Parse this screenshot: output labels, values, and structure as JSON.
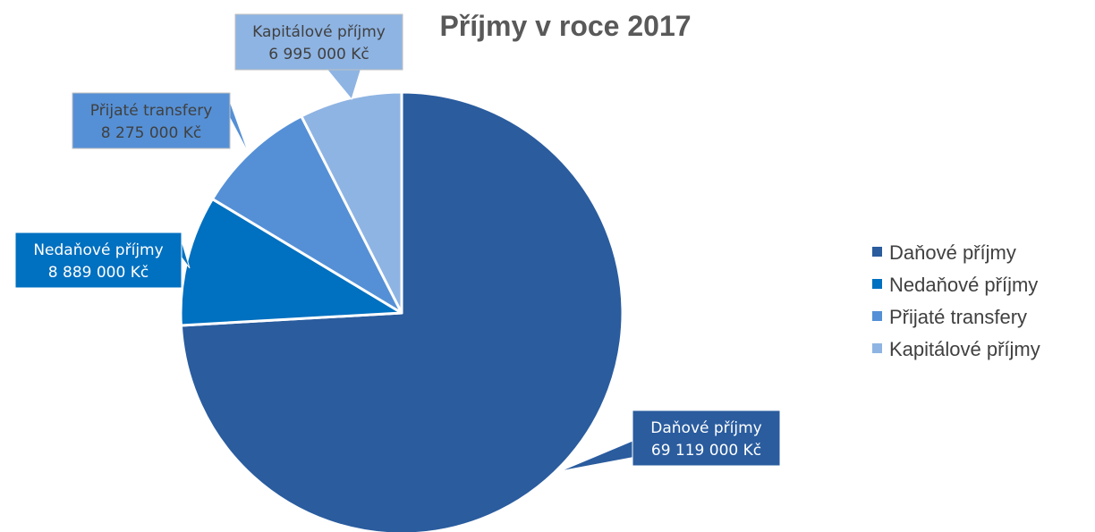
{
  "chart_data": {
    "type": "pie",
    "title": "Příjmy v roce 2017",
    "slices": [
      {
        "label": "Daňové příjmy",
        "value": 69119000,
        "value_text": "69 119 000 Kč",
        "color": "#2A5C9E",
        "text_color": "#FFFFFF"
      },
      {
        "label": "Nedaňové příjmy",
        "value": 8889000,
        "value_text": "8 889 000 Kč",
        "color": "#0070C0",
        "text_color": "#FFFFFF"
      },
      {
        "label": "Přijaté transfery",
        "value": 8275000,
        "value_text": "8 275 000 Kč",
        "color": "#5590D6",
        "text_color": "#404040"
      },
      {
        "label": "Kapitálové příjmy",
        "value": 6995000,
        "value_text": "6 995 000 Kč",
        "color": "#8EB4E3",
        "text_color": "#404040"
      }
    ],
    "legend_position": "right"
  }
}
